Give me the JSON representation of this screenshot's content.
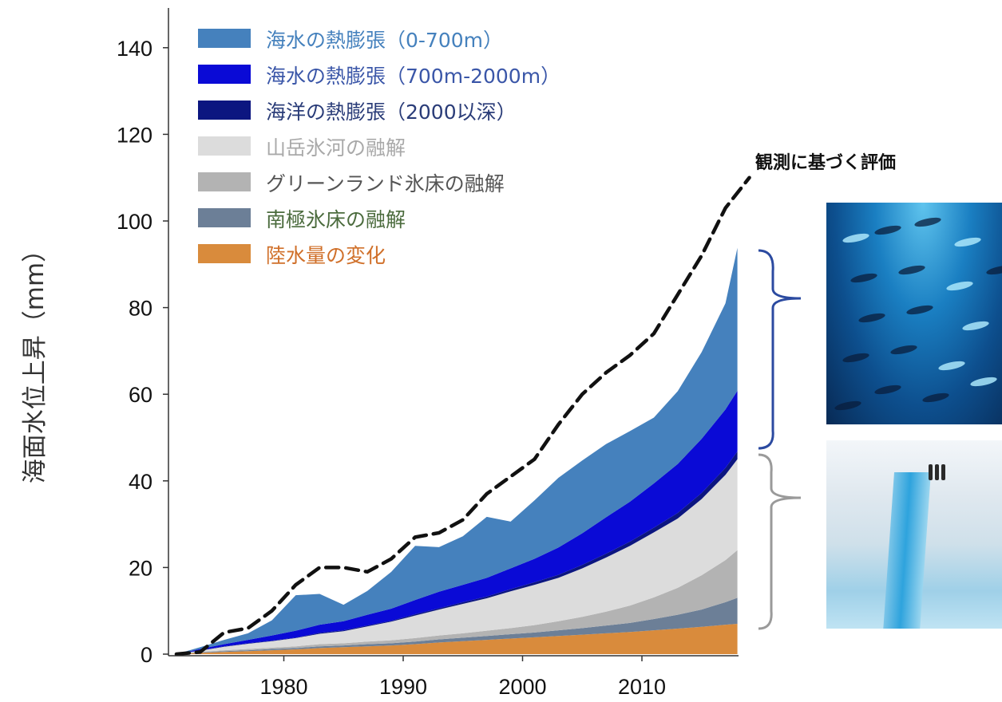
{
  "chart_data": {
    "type": "area",
    "stacked": true,
    "title": "",
    "xlabel": "",
    "ylabel": "海面水位上昇（mm）",
    "xlim": [
      1970,
      2019
    ],
    "ylim": [
      0,
      145
    ],
    "x_ticks": [
      1980,
      1990,
      2000,
      2010
    ],
    "y_ticks": [
      0,
      20,
      40,
      60,
      80,
      100,
      120,
      140
    ],
    "x": [
      1971,
      1973,
      1975,
      1977,
      1979,
      1981,
      1983,
      1985,
      1987,
      1989,
      1991,
      1993,
      1995,
      1997,
      1999,
      2001,
      2003,
      2005,
      2007,
      2009,
      2011,
      2013,
      2015,
      2017,
      2018
    ],
    "series": [
      {
        "name": "陸水量の変化",
        "color": "#d98b3c",
        "values": [
          0,
          0.3,
          0.5,
          0.7,
          0.9,
          1.1,
          1.4,
          1.6,
          1.8,
          2.0,
          2.3,
          2.7,
          3.0,
          3.3,
          3.6,
          3.9,
          4.2,
          4.5,
          4.8,
          5.1,
          5.5,
          5.9,
          6.3,
          6.8,
          7.0
        ]
      },
      {
        "name": "南極氷床の融解",
        "color": "#6c7f97",
        "values": [
          0,
          0.1,
          0.2,
          0.2,
          0.3,
          0.3,
          0.4,
          0.4,
          0.5,
          0.5,
          0.6,
          0.7,
          0.8,
          0.9,
          1.0,
          1.1,
          1.3,
          1.5,
          1.8,
          2.1,
          2.6,
          3.2,
          4.0,
          5.2,
          6.0
        ]
      },
      {
        "name": "グリーンランド氷床の融解",
        "color": "#b3b3b3",
        "values": [
          0,
          0.1,
          0.2,
          0.3,
          0.3,
          0.4,
          0.5,
          0.5,
          0.6,
          0.7,
          0.8,
          0.9,
          1.0,
          1.2,
          1.4,
          1.7,
          2.1,
          2.6,
          3.2,
          4.0,
          5.0,
          6.2,
          7.9,
          9.7,
          11.0
        ]
      },
      {
        "name": "山岳氷河の融解",
        "color": "#dcdcdc",
        "values": [
          0,
          0.3,
          0.8,
          1.2,
          1.5,
          1.9,
          2.4,
          2.8,
          3.5,
          4.3,
          5.2,
          6.0,
          6.8,
          7.5,
          8.5,
          9.3,
          10.0,
          11.2,
          12.5,
          13.8,
          15.0,
          16.0,
          17.6,
          19.7,
          21.0
        ]
      },
      {
        "name": "海洋の熱膨張（2000以深）",
        "color": "#0c1680",
        "values": [
          0,
          0.1,
          0.1,
          0.1,
          0.1,
          0.1,
          0.2,
          0.2,
          0.2,
          0.2,
          0.3,
          0.3,
          0.4,
          0.4,
          0.5,
          0.6,
          0.7,
          0.8,
          0.9,
          1.0,
          1.1,
          1.3,
          1.4,
          1.6,
          1.8
        ]
      },
      {
        "name": "海水の熱膨張（700m-2000m）",
        "color": "#0a0ad6",
        "values": [
          0,
          0.3,
          0.5,
          0.8,
          1.2,
          1.6,
          1.9,
          2.1,
          2.5,
          2.8,
          3.3,
          3.8,
          4.0,
          4.3,
          4.8,
          5.4,
          6.3,
          7.3,
          8.4,
          9.2,
          10.2,
          11.3,
          12.5,
          13.5,
          14.0
        ]
      },
      {
        "name": "海水の熱膨張（0-700m）",
        "color": "#4581bd",
        "values": [
          0,
          0.4,
          1.0,
          1.5,
          3.5,
          8.2,
          7.1,
          3.8,
          5.5,
          8.5,
          12.5,
          10.3,
          11.2,
          14.1,
          10.8,
          13.5,
          16.1,
          16.8,
          16.9,
          16.3,
          15.2,
          16.8,
          20.0,
          24.5,
          33.0
        ]
      }
    ],
    "observed": {
      "name": "観測に基づく評価",
      "style": "dashed",
      "color": "#111111",
      "x": [
        1971,
        1973,
        1975,
        1977,
        1979,
        1981,
        1983,
        1985,
        1987,
        1989,
        1991,
        1993,
        1995,
        1997,
        1999,
        2001,
        2003,
        2005,
        2007,
        2009,
        2011,
        2013,
        2015,
        2017,
        2019
      ],
      "values": [
        0,
        0.5,
        5,
        6,
        10,
        16,
        20,
        20,
        19,
        22,
        27,
        28,
        31,
        37,
        41,
        45,
        53,
        60,
        65,
        69,
        74,
        83,
        92,
        103,
        110
      ]
    },
    "legend_position": "top-left"
  },
  "side_panel": {
    "title": "観測に基づく評価",
    "photos": [
      {
        "icon": "ocean-fish-photo-icon",
        "brace_color": "#2b4aa0"
      },
      {
        "icon": "glacier-crevasse-photo-icon",
        "brace_color": "#9a9a9a"
      }
    ]
  },
  "legend_text_colors": [
    "#4581bd",
    "#3a56a8",
    "#2a3c78",
    "#a9a9a9",
    "#555555",
    "#4b6b3d",
    "#d0702a"
  ]
}
